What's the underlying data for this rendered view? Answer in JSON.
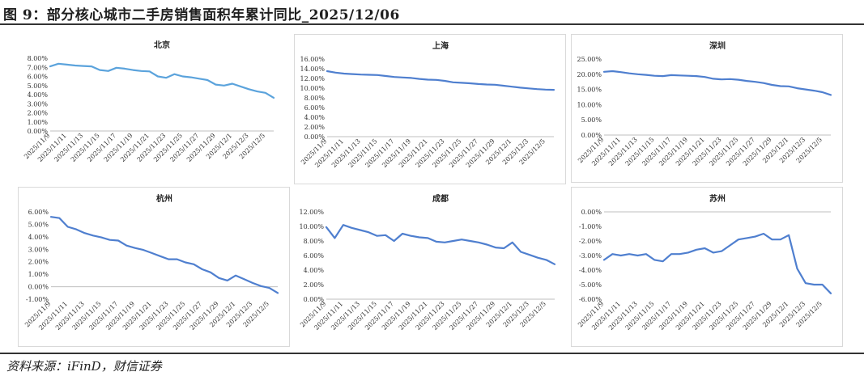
{
  "header": {
    "title": "图 9：部分核心城市二手房销售面积年累计同比_2025/12/06"
  },
  "footer": {
    "source": "资料来源：iFinD，财信证券"
  },
  "chart_data": [
    {
      "type": "line",
      "title": "北京",
      "x": [
        "2025/11/9",
        "2025/11/10",
        "2025/11/11",
        "2025/11/12",
        "2025/11/13",
        "2025/11/14",
        "2025/11/15",
        "2025/11/16",
        "2025/11/17",
        "2025/11/18",
        "2025/11/19",
        "2025/11/20",
        "2025/11/21",
        "2025/11/22",
        "2025/11/23",
        "2025/11/24",
        "2025/11/25",
        "2025/11/26",
        "2025/11/27",
        "2025/11/28",
        "2025/11/29",
        "2025/11/30",
        "2025/12/1",
        "2025/12/2",
        "2025/12/3",
        "2025/12/4",
        "2025/12/5",
        "2025/12/6"
      ],
      "x_tick_labels": [
        "2025/11/9",
        "2025/11/11",
        "2025/11/13",
        "2025/11/15",
        "2025/11/17",
        "2025/11/19",
        "2025/11/21",
        "2025/11/23",
        "2025/11/25",
        "2025/11/27",
        "2025/11/29",
        "2025/12/1",
        "2025/12/3",
        "2025/12/5"
      ],
      "values": [
        7.1,
        7.4,
        7.3,
        7.2,
        7.15,
        7.1,
        6.7,
        6.6,
        6.95,
        6.85,
        6.7,
        6.6,
        6.55,
        6.0,
        5.85,
        6.25,
        6.0,
        5.9,
        5.75,
        5.6,
        5.1,
        5.0,
        5.2,
        4.9,
        4.6,
        4.35,
        4.2,
        3.65
      ],
      "ylim": [
        0,
        8
      ],
      "y_tick_labels": [
        "0.00%",
        "1.00%",
        "2.00%",
        "3.00%",
        "4.00%",
        "5.00%",
        "6.00%",
        "7.00%",
        "8.00%"
      ],
      "color": "#5ba3dc"
    },
    {
      "type": "line",
      "title": "上海",
      "x": [
        "2025/11/9",
        "2025/11/10",
        "2025/11/11",
        "2025/11/12",
        "2025/11/13",
        "2025/11/14",
        "2025/11/15",
        "2025/11/16",
        "2025/11/17",
        "2025/11/18",
        "2025/11/19",
        "2025/11/20",
        "2025/11/21",
        "2025/11/22",
        "2025/11/23",
        "2025/11/24",
        "2025/11/25",
        "2025/11/26",
        "2025/11/27",
        "2025/11/28",
        "2025/11/29",
        "2025/11/30",
        "2025/12/1",
        "2025/12/2",
        "2025/12/3",
        "2025/12/4",
        "2025/12/5",
        "2025/12/6"
      ],
      "x_tick_labels": [
        "2025/11/9",
        "2025/11/11",
        "2025/11/13",
        "2025/11/15",
        "2025/11/17",
        "2025/11/19",
        "2025/11/21",
        "2025/11/23",
        "2025/11/25",
        "2025/11/27",
        "2025/11/29",
        "2025/12/1",
        "2025/12/3",
        "2025/12/5"
      ],
      "values": [
        13.5,
        13.2,
        13.0,
        12.9,
        12.8,
        12.75,
        12.7,
        12.5,
        12.3,
        12.2,
        12.1,
        11.9,
        11.75,
        11.7,
        11.5,
        11.2,
        11.1,
        11.0,
        10.85,
        10.75,
        10.7,
        10.5,
        10.3,
        10.1,
        9.95,
        9.8,
        9.7,
        9.65
      ],
      "ylim": [
        0,
        16
      ],
      "y_tick_labels": [
        "0.00%",
        "2.00%",
        "4.00%",
        "6.00%",
        "8.00%",
        "10.00%",
        "12.00%",
        "14.00%",
        "16.00%"
      ],
      "color": "#4f7fcf"
    },
    {
      "type": "line",
      "title": "深圳",
      "x": [
        "2025/11/9",
        "2025/11/10",
        "2025/11/11",
        "2025/11/12",
        "2025/11/13",
        "2025/11/14",
        "2025/11/15",
        "2025/11/16",
        "2025/11/17",
        "2025/11/18",
        "2025/11/19",
        "2025/11/20",
        "2025/11/21",
        "2025/11/22",
        "2025/11/23",
        "2025/11/24",
        "2025/11/25",
        "2025/11/26",
        "2025/11/27",
        "2025/11/28",
        "2025/11/29",
        "2025/11/30",
        "2025/12/1",
        "2025/12/2",
        "2025/12/3",
        "2025/12/4",
        "2025/12/5",
        "2025/12/6"
      ],
      "x_tick_labels": [
        "2025/11/9",
        "2025/11/11",
        "2025/11/13",
        "2025/11/15",
        "2025/11/17",
        "2025/11/19",
        "2025/11/21",
        "2025/11/23",
        "2025/11/25",
        "2025/11/27",
        "2025/11/29",
        "2025/12/1",
        "2025/12/3",
        "2025/12/5"
      ],
      "values": [
        20.8,
        21.0,
        20.7,
        20.3,
        20.0,
        19.8,
        19.5,
        19.4,
        19.7,
        19.6,
        19.5,
        19.4,
        19.1,
        18.5,
        18.3,
        18.4,
        18.2,
        17.8,
        17.5,
        17.1,
        16.5,
        16.1,
        16.0,
        15.4,
        15.0,
        14.6,
        14.1,
        13.2
      ],
      "ylim": [
        0,
        25
      ],
      "y_tick_labels": [
        "0.00%",
        "5.00%",
        "10.00%",
        "15.00%",
        "20.00%",
        "25.00%"
      ],
      "color": "#4f7fcf"
    },
    {
      "type": "line",
      "title": "杭州",
      "x": [
        "2025/11/9",
        "2025/11/10",
        "2025/11/11",
        "2025/11/12",
        "2025/11/13",
        "2025/11/14",
        "2025/11/15",
        "2025/11/16",
        "2025/11/17",
        "2025/11/18",
        "2025/11/19",
        "2025/11/20",
        "2025/11/21",
        "2025/11/22",
        "2025/11/23",
        "2025/11/24",
        "2025/11/25",
        "2025/11/26",
        "2025/11/27",
        "2025/11/28",
        "2025/11/29",
        "2025/11/30",
        "2025/12/1",
        "2025/12/2",
        "2025/12/3",
        "2025/12/4",
        "2025/12/5",
        "2025/12/6"
      ],
      "x_tick_labels": [
        "2025/11/9",
        "2025/11/11",
        "2025/11/13",
        "2025/11/15",
        "2025/11/17",
        "2025/11/19",
        "2025/11/21",
        "2025/11/23",
        "2025/11/25",
        "2025/11/27",
        "2025/11/29",
        "2025/12/1",
        "2025/12/3",
        "2025/12/5"
      ],
      "values": [
        5.6,
        5.5,
        4.8,
        4.6,
        4.3,
        4.1,
        3.95,
        3.75,
        3.7,
        3.3,
        3.1,
        2.95,
        2.7,
        2.45,
        2.2,
        2.2,
        1.95,
        1.8,
        1.4,
        1.15,
        0.7,
        0.5,
        0.9,
        0.6,
        0.3,
        0.05,
        -0.1,
        -0.5
      ],
      "ylim": [
        -1,
        6
      ],
      "y_tick_labels": [
        "-1.00%",
        "0.00%",
        "1.00%",
        "2.00%",
        "3.00%",
        "4.00%",
        "5.00%",
        "6.00%"
      ],
      "color": "#4f7fcf"
    },
    {
      "type": "line",
      "title": "成都",
      "x": [
        "2025/11/9",
        "2025/11/10",
        "2025/11/11",
        "2025/11/12",
        "2025/11/13",
        "2025/11/14",
        "2025/11/15",
        "2025/11/16",
        "2025/11/17",
        "2025/11/18",
        "2025/11/19",
        "2025/11/20",
        "2025/11/21",
        "2025/11/22",
        "2025/11/23",
        "2025/11/24",
        "2025/11/25",
        "2025/11/26",
        "2025/11/27",
        "2025/11/28",
        "2025/11/29",
        "2025/11/30",
        "2025/12/1",
        "2025/12/2",
        "2025/12/3",
        "2025/12/4",
        "2025/12/5",
        "2025/12/6"
      ],
      "x_tick_labels": [
        "2025/11/9",
        "2025/11/11",
        "2025/11/13",
        "2025/11/15",
        "2025/11/17",
        "2025/11/19",
        "2025/11/21",
        "2025/11/23",
        "2025/11/25",
        "2025/11/27",
        "2025/11/29",
        "2025/12/1",
        "2025/12/3",
        "2025/12/5"
      ],
      "values": [
        9.9,
        8.4,
        10.2,
        9.8,
        9.5,
        9.2,
        8.7,
        8.8,
        8.0,
        9.0,
        8.7,
        8.5,
        8.4,
        7.9,
        7.8,
        8.0,
        8.2,
        8.0,
        7.8,
        7.5,
        7.1,
        7.0,
        7.8,
        6.5,
        6.1,
        5.7,
        5.4,
        4.8
      ],
      "ylim": [
        0,
        12
      ],
      "y_tick_labels": [
        "0.00%",
        "2.00%",
        "4.00%",
        "6.00%",
        "8.00%",
        "10.00%",
        "12.00%"
      ],
      "color": "#4f7fcf"
    },
    {
      "type": "line",
      "title": "苏州",
      "x": [
        "2025/11/9",
        "2025/11/10",
        "2025/11/11",
        "2025/11/12",
        "2025/11/13",
        "2025/11/14",
        "2025/11/15",
        "2025/11/16",
        "2025/11/17",
        "2025/11/18",
        "2025/11/19",
        "2025/11/20",
        "2025/11/21",
        "2025/11/22",
        "2025/11/23",
        "2025/11/24",
        "2025/11/25",
        "2025/11/26",
        "2025/11/27",
        "2025/11/28",
        "2025/11/29",
        "2025/11/30",
        "2025/12/1",
        "2025/12/2",
        "2025/12/3",
        "2025/12/4",
        "2025/12/5",
        "2025/12/6"
      ],
      "x_tick_labels": [
        "2025/11/9",
        "2025/11/11",
        "2025/11/13",
        "2025/11/15",
        "2025/11/17",
        "2025/11/19",
        "2025/11/21",
        "2025/11/23",
        "2025/11/25",
        "2025/11/27",
        "2025/11/29",
        "2025/12/1",
        "2025/12/3",
        "2025/12/5"
      ],
      "values": [
        -3.3,
        -2.9,
        -3.0,
        -2.9,
        -3.0,
        -2.9,
        -3.3,
        -3.4,
        -2.9,
        -2.9,
        -2.8,
        -2.6,
        -2.5,
        -2.8,
        -2.7,
        -2.3,
        -1.9,
        -1.8,
        -1.7,
        -1.5,
        -1.9,
        -1.9,
        -1.6,
        -3.9,
        -4.9,
        -5.0,
        -5.0,
        -5.6
      ],
      "ylim": [
        -6,
        0
      ],
      "y_tick_labels": [
        "-6.00%",
        "-5.00%",
        "-4.00%",
        "-3.00%",
        "-2.00%",
        "-1.00%",
        "0.00%"
      ],
      "color": "#4f7fcf"
    }
  ]
}
